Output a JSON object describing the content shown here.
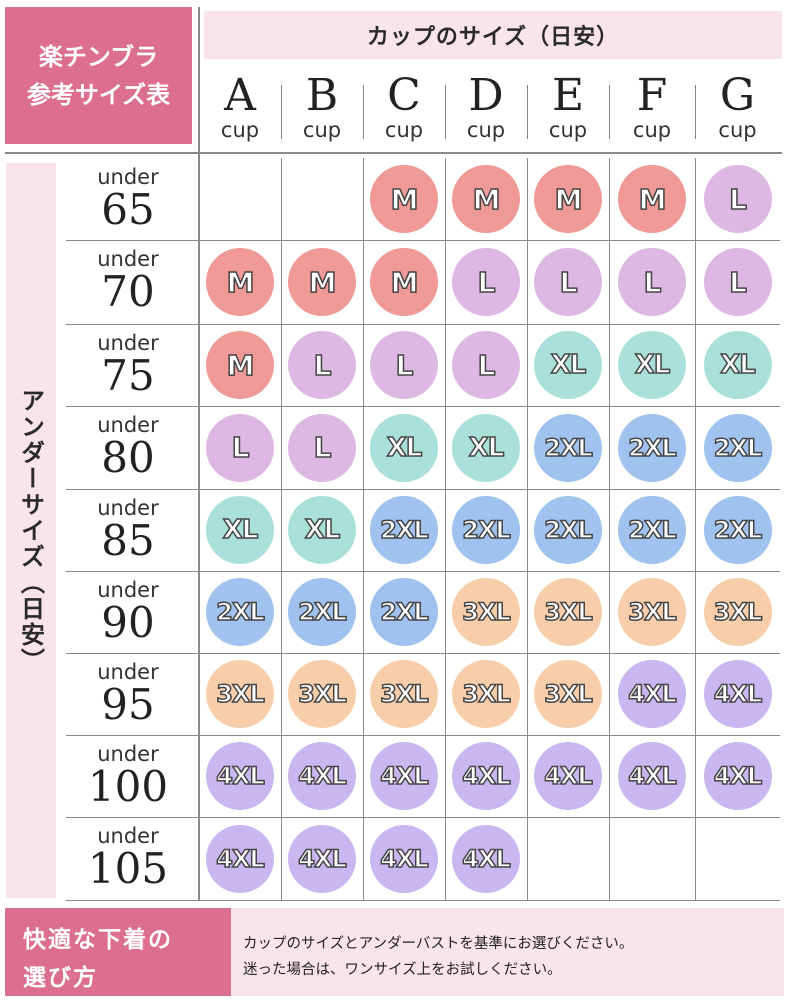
{
  "title_lines": [
    "楽チンブラ",
    "参考サイズ表"
  ],
  "cup_header": "カップのサイズ（日安）",
  "under_header": "アンダーサイズ（日安）",
  "cup_suffix": "cup",
  "under_prefix": "under",
  "cups": [
    "A",
    "B",
    "C",
    "D",
    "E",
    "F",
    "G"
  ],
  "rows": [
    {
      "under": "65",
      "sizes": [
        "",
        "",
        "M",
        "M",
        "M",
        "M",
        "L"
      ]
    },
    {
      "under": "70",
      "sizes": [
        "M",
        "M",
        "M",
        "L",
        "L",
        "L",
        "L"
      ]
    },
    {
      "under": "75",
      "sizes": [
        "M",
        "L",
        "L",
        "L",
        "XL",
        "XL",
        "XL"
      ]
    },
    {
      "under": "80",
      "sizes": [
        "L",
        "L",
        "XL",
        "XL",
        "2XL",
        "2XL",
        "2XL"
      ]
    },
    {
      "under": "85",
      "sizes": [
        "XL",
        "XL",
        "2XL",
        "2XL",
        "2XL",
        "2XL",
        "2XL"
      ]
    },
    {
      "under": "90",
      "sizes": [
        "2XL",
        "2XL",
        "2XL",
        "3XL",
        "3XL",
        "3XL",
        "3XL"
      ]
    },
    {
      "under": "95",
      "sizes": [
        "3XL",
        "3XL",
        "3XL",
        "3XL",
        "3XL",
        "4XL",
        "4XL"
      ]
    },
    {
      "under": "100",
      "sizes": [
        "4XL",
        "4XL",
        "4XL",
        "4XL",
        "4XL",
        "4XL",
        "4XL"
      ]
    },
    {
      "under": "105",
      "sizes": [
        "4XL",
        "4XL",
        "4XL",
        "4XL",
        "",
        "",
        ""
      ]
    }
  ],
  "size_colors": {
    "M": "#ef9a97",
    "L": "#dcb8e2",
    "XL": "#a9e1da",
    "2XL": "#9fc2ee",
    "3XL": "#f8ceaa",
    "4XL": "#c8b7f0"
  },
  "footer": {
    "heading_line1": "快適な下着の",
    "heading_line2": "選び方",
    "note_line1": "カップのサイズとアンダーバストを基準にお選びください。",
    "note_line2": "迷った場合は、ワンサイズ上をお試しください。"
  },
  "colors": {
    "accent_pink": "#dc6f8f",
    "light_pink": "#f8e4ea",
    "grid_line": "#8a8a8a"
  }
}
